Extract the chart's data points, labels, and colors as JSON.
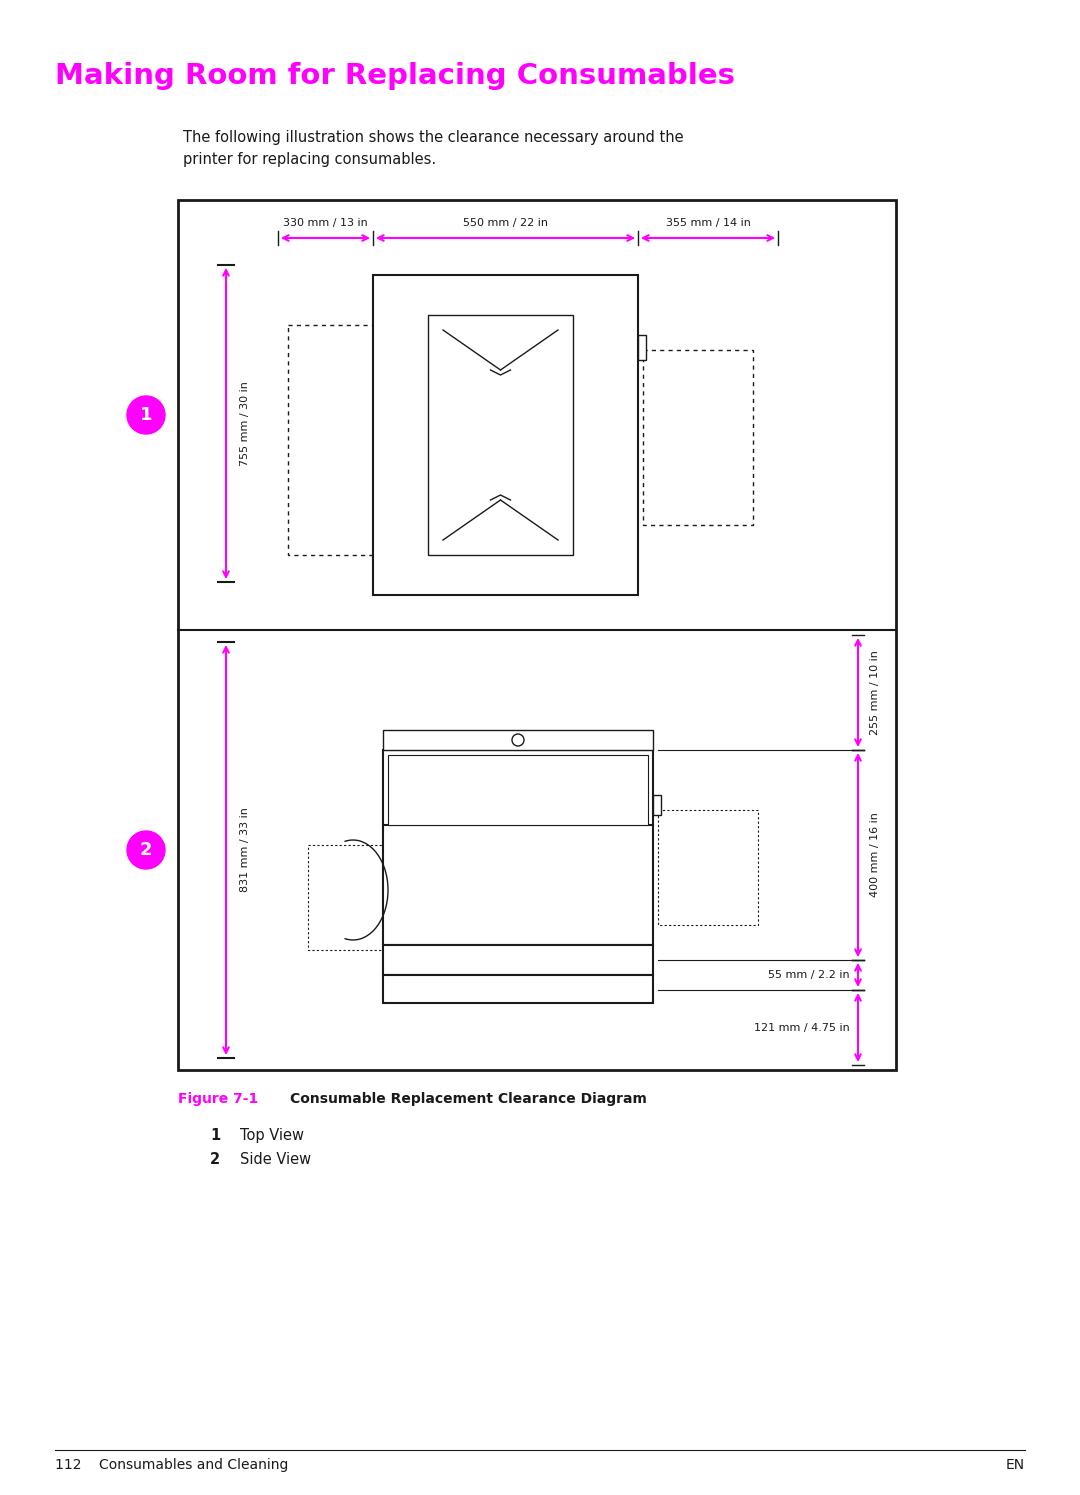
{
  "title": "Making Room for Replacing Consumables",
  "title_color": "#FF00FF",
  "body_text_1": "The following illustration shows the clearance necessary around the",
  "body_text_2": "printer for replacing consumables.",
  "figure_label": "Figure 7-1",
  "figure_label_color": "#FF00FF",
  "figure_title": "Consumable Replacement Clearance Diagram",
  "caption_1_num": "1",
  "caption_1_text": "Top View",
  "caption_2_num": "2",
  "caption_2_text": "Side View",
  "footer_left": "112    Consumables and Cleaning",
  "footer_right": "EN",
  "magenta": "#FF00FF",
  "dark": "#1a1a1a",
  "page_bg": "#ffffff"
}
